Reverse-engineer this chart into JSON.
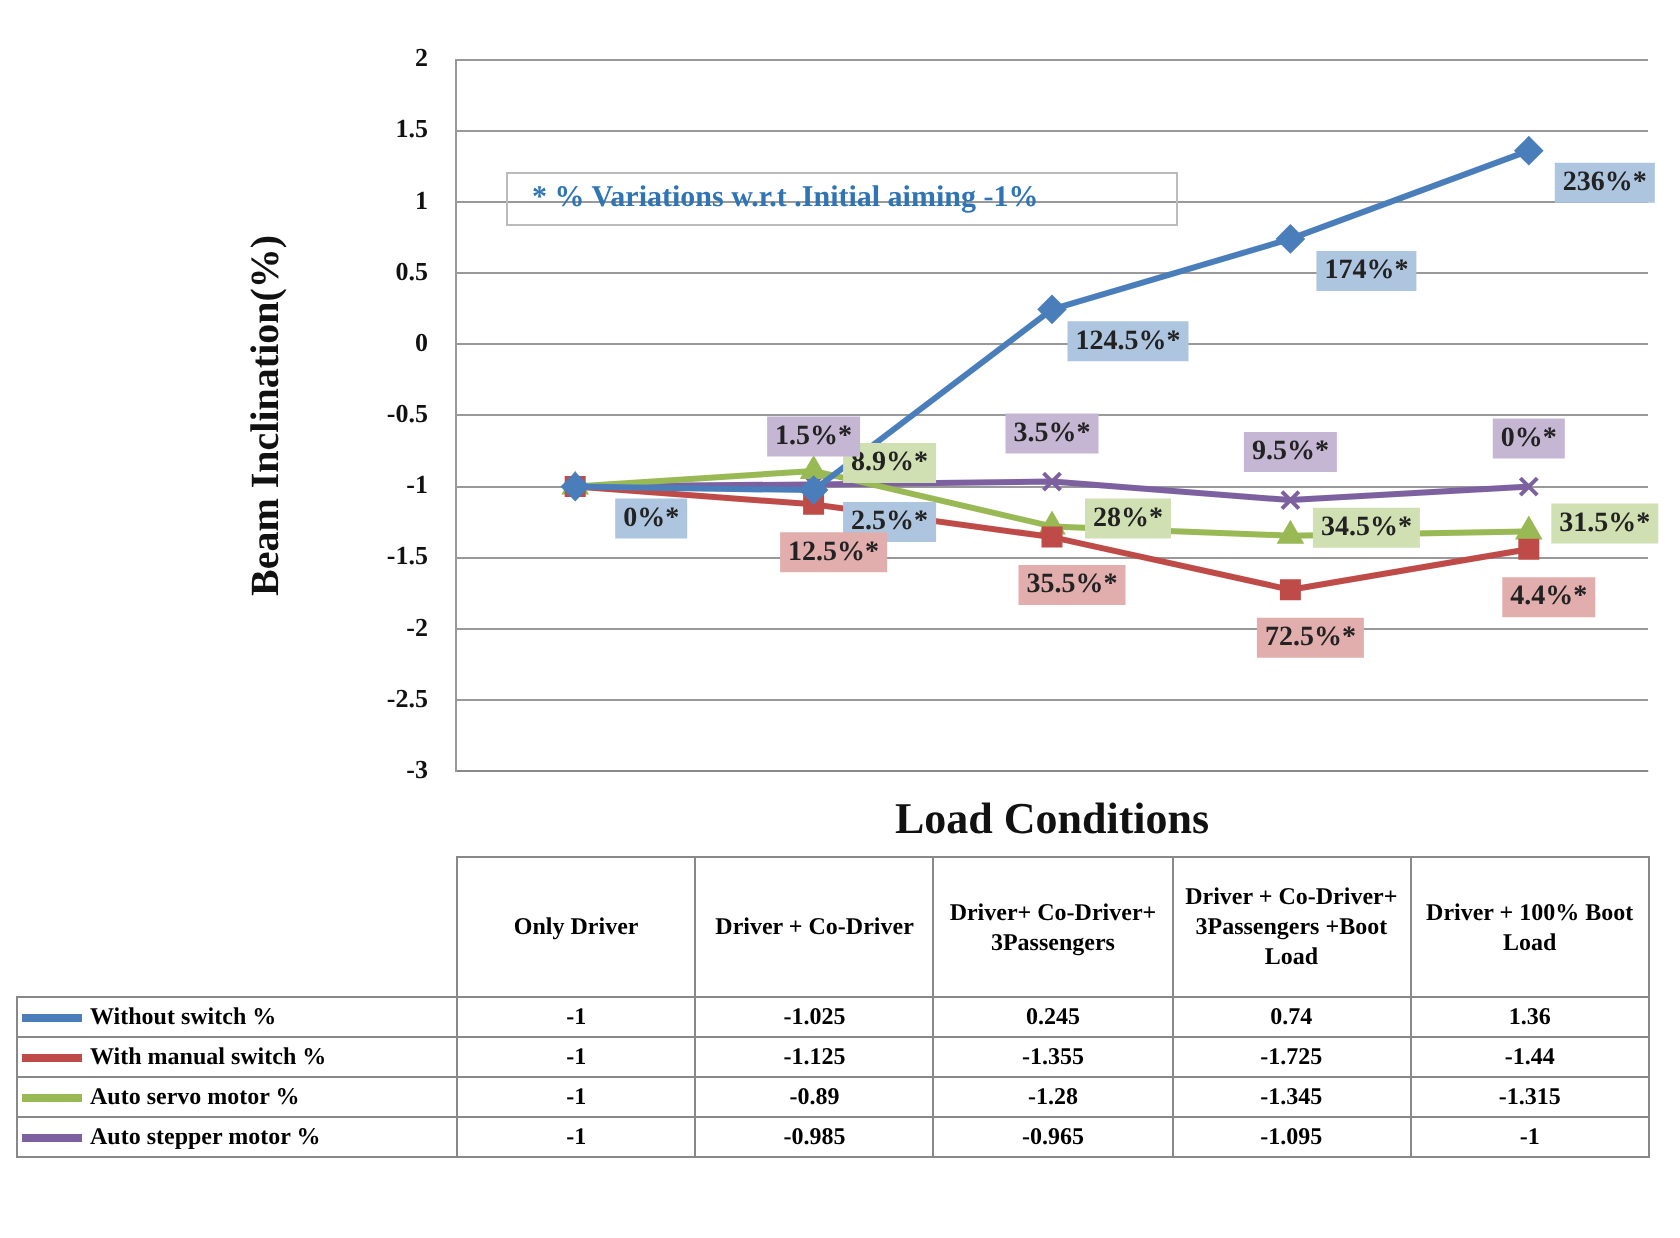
{
  "chart_data": {
    "type": "line",
    "xlabel": "Load Conditions",
    "ylabel": "Beam Inclination(%)",
    "annotations": [
      "* % Variations w.r.t .Initial aiming -1%",
      {
        "text": "0%*",
        "x": "Only Driver",
        "y": -1
      },
      {
        "text": "2.5%*",
        "x": "Driver + Co-Driver",
        "y": -1.025
      },
      {
        "text": "124.5%*",
        "x": "Driver+ Co-Driver+ 3Passengers",
        "y": 0.245
      },
      {
        "text": "174%*",
        "x": "Driver + Co-Driver+ 3Passengers +Boot Load",
        "y": 0.74
      },
      {
        "text": "236%*",
        "x": "Driver + 100% Boot Load",
        "y": 1.36
      },
      {
        "text": "12.5%*",
        "x": "Driver + Co-Driver",
        "y": -1.125
      },
      {
        "text": "35.5%*",
        "x": "Driver+ Co-Driver+ 3Passengers",
        "y": -1.355
      },
      {
        "text": "72.5%*",
        "x": "Driver + Co-Driver+ 3Passengers +Boot Load",
        "y": -1.725
      },
      {
        "text": "4.4%*",
        "x": "Driver + 100% Boot Load",
        "y": -1.44
      },
      {
        "text": "8.9%*",
        "x": "Driver + Co-Driver",
        "y": -0.89
      },
      {
        "text": "28%*",
        "x": "Driver+ Co-Driver+ 3Passengers",
        "y": -1.28
      },
      {
        "text": "34.5%*",
        "x": "Driver + Co-Driver+ 3Passengers +Boot Load",
        "y": -1.345
      },
      {
        "text": "31.5%*",
        "x": "Driver + 100% Boot Load",
        "y": -1.315
      },
      {
        "text": "1.5%*",
        "x": "Driver + Co-Driver",
        "y": -0.985
      },
      {
        "text": "3.5%*",
        "x": "Driver+ Co-Driver+ 3Passengers",
        "y": -0.965
      },
      {
        "text": "9.5%*",
        "x": "Driver + Co-Driver+ 3Passengers +Boot Load",
        "y": -1.095
      },
      {
        "text": "0%*",
        "x": "Driver + 100% Boot Load",
        "y": -1
      }
    ],
    "categories": [
      "Only Driver",
      "Driver + Co-Driver",
      "Driver+ Co-Driver+ 3Passengers",
      "Driver + Co-Driver+ 3Passengers +Boot Load",
      "Driver + 100% Boot Load"
    ],
    "series": [
      {
        "name": "Without switch %",
        "color": "#4a7ebb",
        "marker": "diamond",
        "values": [
          -1,
          -1.025,
          0.245,
          0.74,
          1.36
        ]
      },
      {
        "name": "With manual switch %",
        "color": "#be4b48",
        "marker": "square",
        "values": [
          -1,
          -1.125,
          -1.355,
          -1.725,
          -1.44
        ]
      },
      {
        "name": "Auto servo motor %",
        "color": "#98b954",
        "marker": "triangle",
        "values": [
          -1,
          -0.89,
          -1.28,
          -1.345,
          -1.315
        ]
      },
      {
        "name": "Auto stepper motor %",
        "color": "#7d60a0",
        "marker": "cross",
        "values": [
          -1,
          -0.985,
          -0.965,
          -1.095,
          -1
        ]
      }
    ],
    "ylim": [
      -3,
      2
    ],
    "yticks": [
      -3,
      -2.5,
      -2,
      -1.5,
      -1,
      -0.5,
      0,
      0.5,
      1,
      1.5,
      2
    ],
    "grid": "y",
    "legend": "bottom",
    "data_labels": true,
    "line_style": "solid"
  }
}
